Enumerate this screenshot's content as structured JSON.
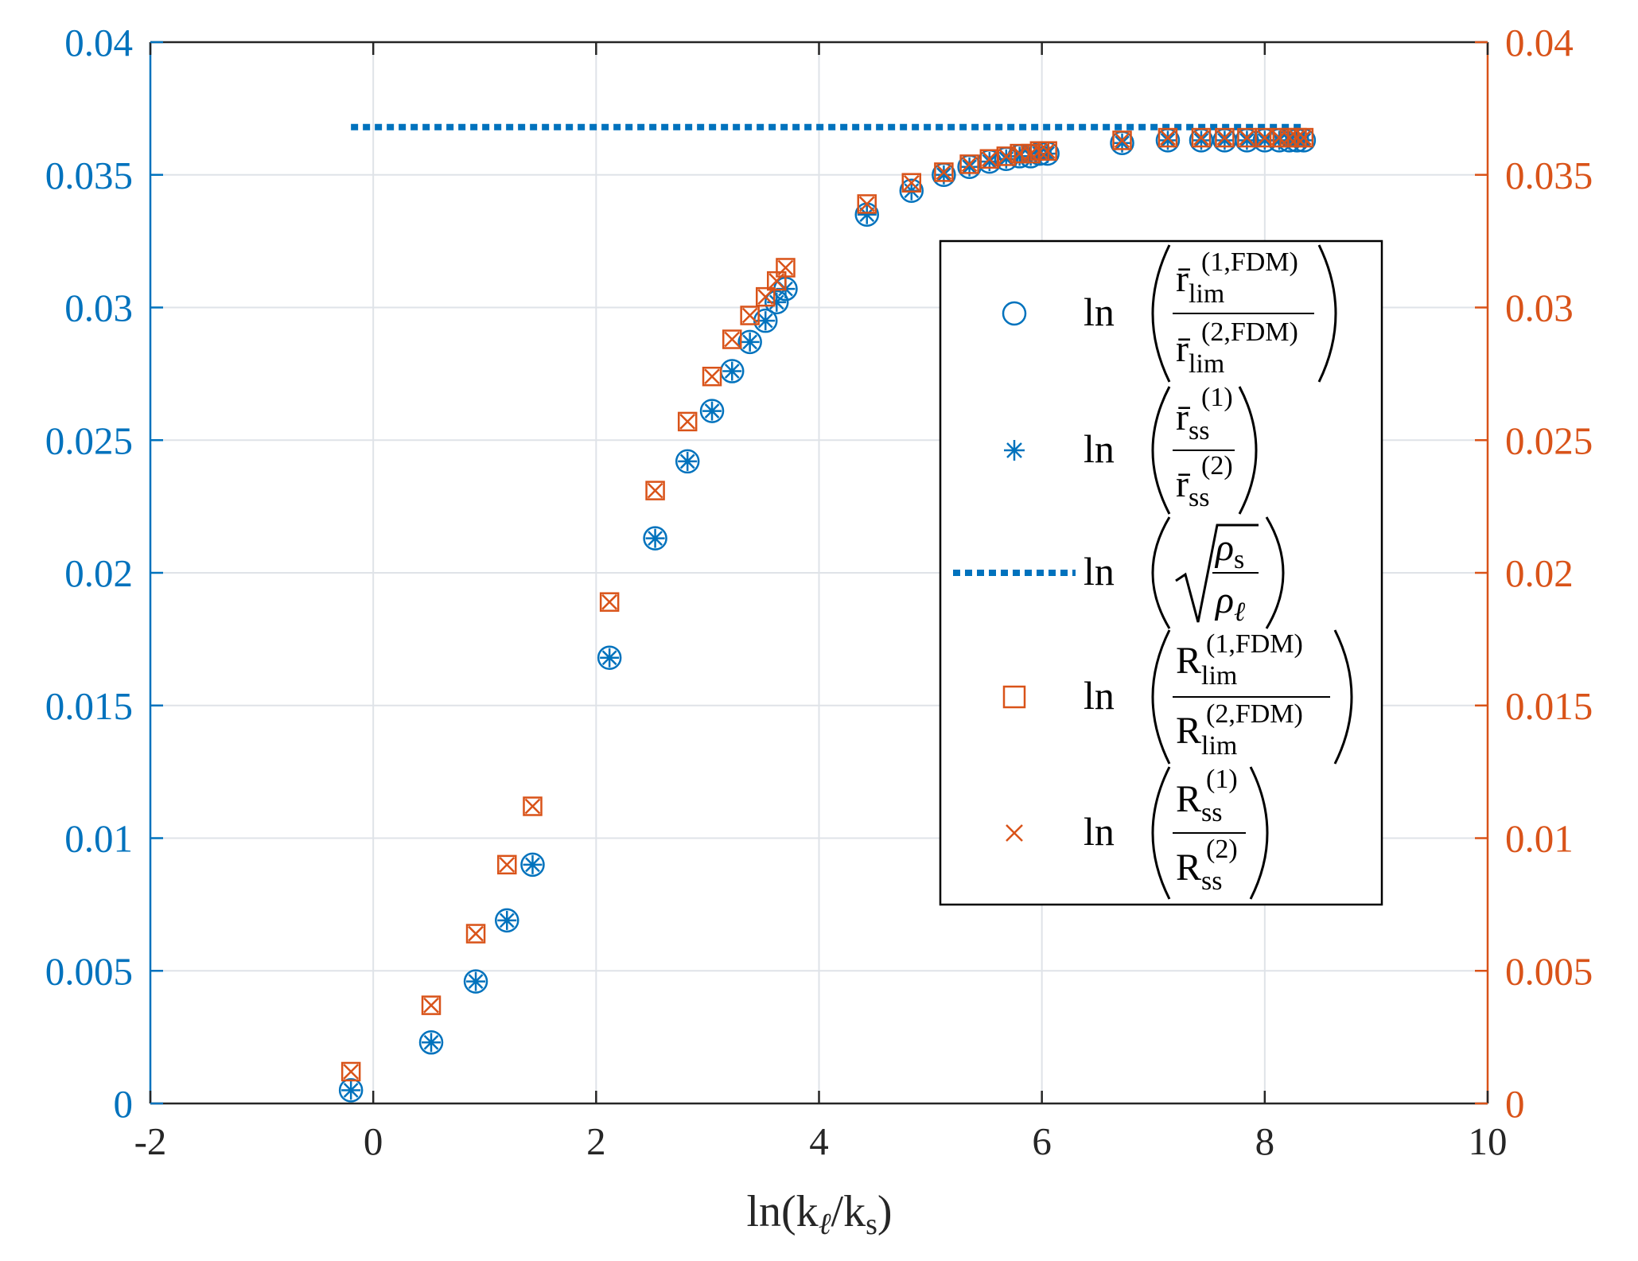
{
  "chart_data": {
    "type": "scatter",
    "xlabel": "ln(kℓ/ks)",
    "xlim": [
      -2,
      10
    ],
    "x_ticks": [
      -2,
      0,
      2,
      4,
      6,
      8,
      10
    ],
    "x_tick_labels": [
      "-2",
      "0",
      "2",
      "4",
      "6",
      "8",
      "10"
    ],
    "left_axis": {
      "ylim": [
        0,
        0.04
      ],
      "ticks": [
        0,
        0.005,
        0.01,
        0.015,
        0.02,
        0.025,
        0.03,
        0.035,
        0.04
      ],
      "tick_labels": [
        "0",
        "0.005",
        "0.01",
        "0.015",
        "0.02",
        "0.025",
        "0.03",
        "0.035",
        "0.04"
      ],
      "color": "#0072BD"
    },
    "right_axis": {
      "ylim": [
        0,
        0.04
      ],
      "ticks": [
        0,
        0.005,
        0.01,
        0.015,
        0.02,
        0.025,
        0.03,
        0.035,
        0.04
      ],
      "tick_labels": [
        "0",
        "0.005",
        "0.01",
        "0.015",
        "0.02",
        "0.025",
        "0.03",
        "0.035",
        "0.04"
      ],
      "color": "#D95319"
    },
    "grid": true,
    "legend_position": "right",
    "series": [
      {
        "name": "r_lim FDM ratio",
        "marker": "circle",
        "axis": "left",
        "color": "#0072BD",
        "x": [
          -0.2,
          0.52,
          0.92,
          1.2,
          1.43,
          2.12,
          2.53,
          2.82,
          3.04,
          3.22,
          3.38,
          3.52,
          3.62,
          3.7,
          4.43,
          4.83,
          5.12,
          5.35,
          5.53,
          5.68,
          5.8,
          5.9,
          5.98,
          6.05,
          6.72,
          7.13,
          7.43,
          7.64,
          7.84,
          8.0,
          8.13,
          8.22,
          8.29,
          8.35
        ],
        "y": [
          0.0005,
          0.0023,
          0.0046,
          0.0069,
          0.009,
          0.0168,
          0.0213,
          0.0242,
          0.0261,
          0.0276,
          0.0287,
          0.0295,
          0.0302,
          0.0307,
          0.0335,
          0.0344,
          0.035,
          0.0353,
          0.0355,
          0.0356,
          0.0357,
          0.0357,
          0.0358,
          0.0358,
          0.0362,
          0.0363,
          0.0363,
          0.0363,
          0.0363,
          0.0363,
          0.0363,
          0.0363,
          0.0363,
          0.0363
        ]
      },
      {
        "name": "r_ss ratio",
        "marker": "asterisk",
        "axis": "left",
        "color": "#0072BD",
        "x": [
          -0.2,
          0.52,
          0.92,
          1.2,
          1.43,
          2.12,
          2.53,
          2.82,
          3.04,
          3.22,
          3.38,
          3.52,
          3.62,
          3.7,
          4.43,
          4.83,
          5.12,
          5.35,
          5.53,
          5.68,
          5.8,
          5.9,
          5.98,
          6.05,
          6.72,
          7.13,
          7.43,
          7.64,
          7.84,
          8.0,
          8.13,
          8.22,
          8.29,
          8.35
        ],
        "y": [
          0.0005,
          0.0023,
          0.0046,
          0.0069,
          0.009,
          0.0168,
          0.0213,
          0.0242,
          0.0261,
          0.0276,
          0.0287,
          0.0295,
          0.0302,
          0.0307,
          0.0335,
          0.0344,
          0.035,
          0.0353,
          0.0355,
          0.0356,
          0.0357,
          0.0357,
          0.0358,
          0.0358,
          0.0362,
          0.0363,
          0.0363,
          0.0363,
          0.0363,
          0.0363,
          0.0363,
          0.0363,
          0.0363,
          0.0363
        ]
      },
      {
        "name": "sqrt density ratio",
        "marker": "dotted-line",
        "axis": "left",
        "color": "#0072BD",
        "x": [
          -0.2,
          8.35
        ],
        "y": [
          0.0368,
          0.0368
        ]
      },
      {
        "name": "R_lim FDM ratio",
        "marker": "square",
        "axis": "right",
        "color": "#D95319",
        "x": [
          -0.2,
          0.52,
          0.92,
          1.2,
          1.43,
          2.12,
          2.53,
          2.82,
          3.04,
          3.22,
          3.38,
          3.52,
          3.62,
          3.7,
          4.43,
          4.83,
          5.12,
          5.35,
          5.53,
          5.68,
          5.8,
          5.9,
          5.98,
          6.05,
          6.72,
          7.13,
          7.43,
          7.64,
          7.84,
          8.0,
          8.13,
          8.22,
          8.29,
          8.35
        ],
        "y": [
          0.0012,
          0.0037,
          0.0064,
          0.009,
          0.0112,
          0.0189,
          0.0231,
          0.0257,
          0.0274,
          0.0288,
          0.0297,
          0.0304,
          0.031,
          0.0315,
          0.0339,
          0.0347,
          0.0351,
          0.0354,
          0.0356,
          0.0357,
          0.0358,
          0.0358,
          0.0359,
          0.0359,
          0.0363,
          0.0364,
          0.0364,
          0.0364,
          0.0364,
          0.0364,
          0.0364,
          0.0364,
          0.0364,
          0.0364
        ]
      },
      {
        "name": "R_ss ratio",
        "marker": "cross",
        "axis": "right",
        "color": "#D95319",
        "x": [
          -0.2,
          0.52,
          0.92,
          1.2,
          1.43,
          2.12,
          2.53,
          2.82,
          3.04,
          3.22,
          3.38,
          3.52,
          3.62,
          3.7,
          4.43,
          4.83,
          5.12,
          5.35,
          5.53,
          5.68,
          5.8,
          5.9,
          5.98,
          6.05,
          6.72,
          7.13,
          7.43,
          7.64,
          7.84,
          8.0,
          8.13,
          8.22,
          8.29,
          8.35
        ],
        "y": [
          0.0012,
          0.0037,
          0.0064,
          0.009,
          0.0112,
          0.0189,
          0.0231,
          0.0257,
          0.0274,
          0.0288,
          0.0297,
          0.0304,
          0.031,
          0.0315,
          0.0339,
          0.0347,
          0.0351,
          0.0354,
          0.0356,
          0.0357,
          0.0358,
          0.0358,
          0.0359,
          0.0359,
          0.0363,
          0.0364,
          0.0364,
          0.0364,
          0.0364,
          0.0364,
          0.0364,
          0.0364,
          0.0364,
          0.0364
        ]
      }
    ]
  },
  "xlabel": {
    "ln": "ln(k",
    "ell": "ℓ",
    "slash": "/k",
    "s": "s",
    "close": ")"
  },
  "legend": {
    "ln": "ln",
    "bar_r": "r̄",
    "cap_r": "R",
    "lim": "lim",
    "ss": "ss",
    "sup_1fdm": "(1,FDM)",
    "sup_2fdm": "(2,FDM)",
    "sup_1": "(1)",
    "sup_2": "(2)",
    "rho": "ρ",
    "sub_s": "s",
    "sub_ell": "ℓ"
  }
}
